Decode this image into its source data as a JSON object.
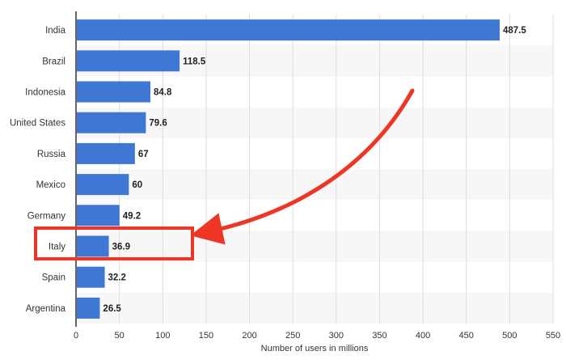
{
  "chart_data": {
    "type": "bar",
    "orientation": "horizontal",
    "title": "",
    "xlabel": "Number of users in millions",
    "ylabel": "",
    "categories": [
      "India",
      "Brazil",
      "Indonesia",
      "United States",
      "Russia",
      "Mexico",
      "Germany",
      "Italy",
      "Spain",
      "Argentina"
    ],
    "values": [
      487.5,
      118.5,
      84.8,
      79.6,
      67,
      60,
      49.2,
      36.9,
      32.2,
      26.5
    ],
    "value_labels": [
      "487.5",
      "118.5",
      "84.8",
      "79.6",
      "67",
      "60",
      "49.2",
      "36.9",
      "32.2",
      "26.5"
    ],
    "xlim": [
      0,
      550
    ],
    "xticks": [
      0,
      50,
      100,
      150,
      200,
      250,
      300,
      350,
      400,
      450,
      500,
      550
    ],
    "grid": true,
    "alternating_row_bands": true,
    "highlighted_category": "Italy",
    "annotation": "red arrow pointing to highlighted Italy row",
    "colors": {
      "bar": "#3f77d5",
      "grid": "#dddddd",
      "axis": "#333333",
      "text": "#333333",
      "row_band": "#f7f7f7",
      "highlight": "#ef3524"
    }
  }
}
